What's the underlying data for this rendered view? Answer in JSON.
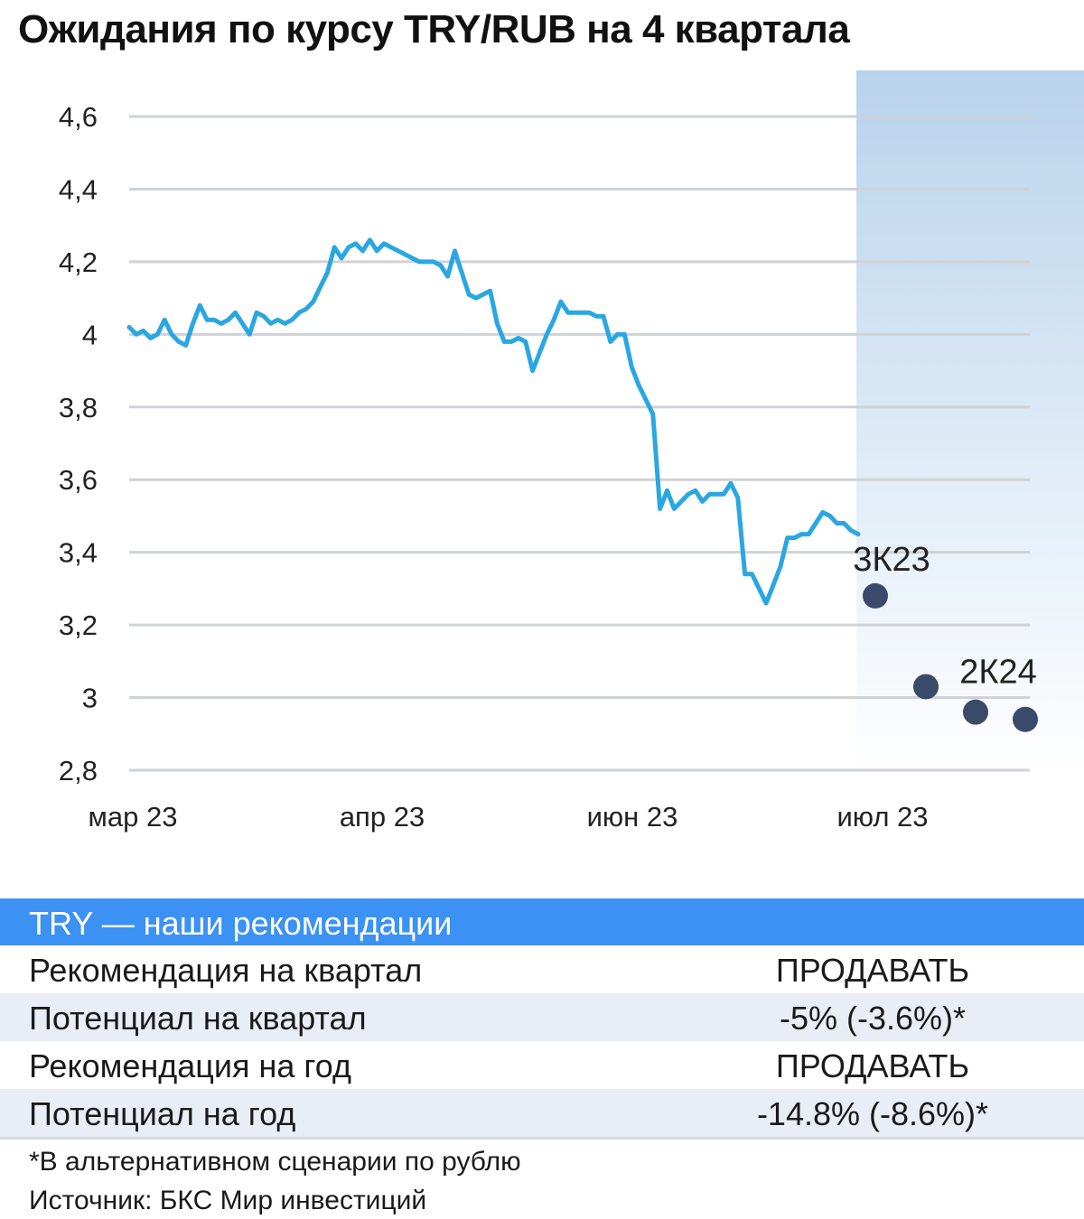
{
  "title": "Ожидания по курсу TRY/RUB на 4 квартала",
  "chart_data": {
    "type": "line",
    "title": "Ожидания по курсу TRY/RUB на 4 квартала",
    "ylim": [
      2.8,
      4.6
    ],
    "y_ticks": [
      "4,6",
      "4,4",
      "4,2",
      "4",
      "3,8",
      "3,6",
      "3,4",
      "3,2",
      "3",
      "2,8"
    ],
    "y_tick_values": [
      4.6,
      4.4,
      4.2,
      4.0,
      3.8,
      3.6,
      3.4,
      3.2,
      3.0,
      2.8
    ],
    "x_ticks": [
      "мар 23",
      "апр 23",
      "июн 23",
      "июл 23"
    ],
    "grid": true,
    "series": [
      {
        "values": [
          4.02,
          4.0,
          4.01,
          3.99,
          4.0,
          4.04,
          4.0,
          3.98,
          3.97,
          4.03,
          4.08,
          4.04,
          4.04,
          4.03,
          4.04,
          4.06,
          4.03,
          4.0,
          4.06,
          4.05,
          4.03,
          4.04,
          4.03,
          4.04,
          4.06,
          4.07,
          4.09,
          4.13,
          4.17,
          4.24,
          4.21,
          4.24,
          4.25,
          4.23,
          4.26,
          4.23,
          4.25,
          4.24,
          4.23,
          4.22,
          4.21,
          4.2,
          4.2,
          4.2,
          4.19,
          4.16,
          4.23,
          4.17,
          4.11,
          4.1,
          4.11,
          4.12,
          4.03,
          3.98,
          3.98,
          3.99,
          3.98,
          3.9,
          3.95,
          4.0,
          4.04,
          4.09,
          4.06,
          4.06,
          4.06,
          4.06,
          4.05,
          4.05,
          3.98,
          4.0,
          4.0,
          3.91,
          3.86,
          3.82,
          3.78,
          3.52,
          3.57,
          3.52,
          3.54,
          3.56,
          3.57,
          3.54,
          3.56,
          3.56,
          3.56,
          3.59,
          3.55,
          3.34,
          3.34,
          3.3,
          3.26,
          3.31,
          3.36,
          3.44,
          3.44,
          3.45,
          3.45,
          3.48,
          3.51,
          3.5,
          3.48,
          3.48,
          3.46,
          3.45
        ]
      }
    ],
    "forecast": [
      {
        "label": "3К23",
        "value": 3.28
      },
      {
        "label": "",
        "value": 3.03
      },
      {
        "label": "",
        "value": 2.96
      },
      {
        "label": "2К24",
        "value": 2.94
      }
    ],
    "colors": {
      "line": "#2aa7e0",
      "forecast_dot": "#3b4a6b",
      "grid": "#cfd2d6",
      "shade": "#b8d3ec"
    }
  },
  "table": {
    "header": "TRY — наши рекомендации",
    "rows": [
      {
        "label": "Рекомендация на квартал",
        "value": "ПРОДАВАТЬ"
      },
      {
        "label": "Потенциал на квартал",
        "value": "-5% (-3.6%)*"
      },
      {
        "label": "Рекомендация на год",
        "value": "ПРОДАВАТЬ"
      },
      {
        "label": "Потенциал на год",
        "value": "-14.8% (-8.6%)*"
      }
    ]
  },
  "footnote": "*В альтернативном сценарии по рублю",
  "source": "Источник: БКС Мир инвестиций"
}
